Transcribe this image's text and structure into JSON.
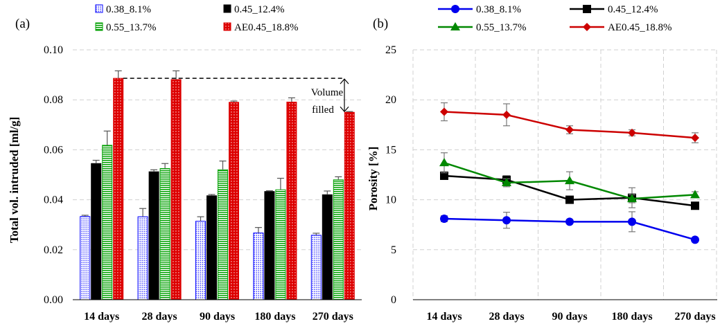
{
  "chart_data": [
    {
      "panel_label": "(a)",
      "type": "bar",
      "ylabel": "Total vol. intruded [ml/g]",
      "xlabel": "",
      "ylim": [
        0,
        0.1
      ],
      "yticks": [
        "0.00",
        "0.02",
        "0.04",
        "0.06",
        "0.08",
        "0.10"
      ],
      "grid": "horizontal dashed",
      "legend": "top",
      "categories": [
        "14 days",
        "28 days",
        "90 days",
        "180 days",
        "270 days"
      ],
      "series": [
        {
          "name": "0.38_8.1%",
          "color": "#0000ff",
          "pattern": "dotted",
          "values": [
            0.0333,
            0.0332,
            0.0314,
            0.0267,
            0.0258
          ],
          "errors": [
            0.0005,
            0.0033,
            0.0018,
            0.0022,
            0.0008
          ]
        },
        {
          "name": "0.45_12.4%",
          "color": "#000000",
          "pattern": "solid",
          "values": [
            0.0545,
            0.0512,
            0.0416,
            0.0433,
            0.042
          ],
          "errors": [
            0.0013,
            0.0008,
            0.0005,
            0.0003,
            0.0015
          ]
        },
        {
          "name": "0.55_13.7%",
          "color": "#00a000",
          "pattern": "dashed",
          "values": [
            0.0618,
            0.0525,
            0.052,
            0.044,
            0.048
          ],
          "errors": [
            0.0057,
            0.002,
            0.0035,
            0.0046,
            0.0012
          ]
        },
        {
          "name": "AE0.45_18.8%",
          "color": "#dd0000",
          "pattern": "dotted",
          "values": [
            0.0886,
            0.0881,
            0.079,
            0.0791,
            0.075
          ],
          "errors": [
            0.003,
            0.0035,
            0.0005,
            0.0017,
            0.0003
          ]
        }
      ],
      "annotation": {
        "text_line1": "Volume",
        "text_line2": "filled",
        "from": 0.0886,
        "to": 0.075
      }
    },
    {
      "panel_label": "(b)",
      "type": "line",
      "ylabel": "Porosity [%]",
      "xlabel": "",
      "ylim": [
        0,
        25
      ],
      "yticks": [
        "0",
        "5",
        "10",
        "15",
        "20",
        "25"
      ],
      "grid": "horizontal and vertical dashed",
      "legend": "top",
      "categories": [
        "14 days",
        "28 days",
        "90 days",
        "180 days",
        "270 days"
      ],
      "series": [
        {
          "name": "0.38_8.1%",
          "color": "#0000ee",
          "marker": "circle",
          "values": [
            8.1,
            7.95,
            7.8,
            7.8,
            6.0
          ],
          "errors": [
            0.3,
            0.8,
            0.2,
            1.0,
            0.2
          ]
        },
        {
          "name": "0.45_12.4%",
          "color": "#000000",
          "marker": "square",
          "values": [
            12.4,
            12.0,
            10.0,
            10.2,
            9.4
          ],
          "errors": [
            0.2,
            0.4,
            0.2,
            1.0,
            0.3
          ]
        },
        {
          "name": "0.55_13.7%",
          "color": "#008800",
          "marker": "triangle",
          "values": [
            13.7,
            11.7,
            11.9,
            10.1,
            10.5
          ],
          "errors": [
            1.0,
            0.4,
            0.9,
            0.4,
            0.3
          ]
        },
        {
          "name": "AE0.45_18.8%",
          "color": "#cc0000",
          "marker": "diamond",
          "values": [
            18.8,
            18.5,
            17.0,
            16.7,
            16.2
          ],
          "errors": [
            0.9,
            1.1,
            0.4,
            0.3,
            0.5
          ]
        }
      ]
    }
  ]
}
